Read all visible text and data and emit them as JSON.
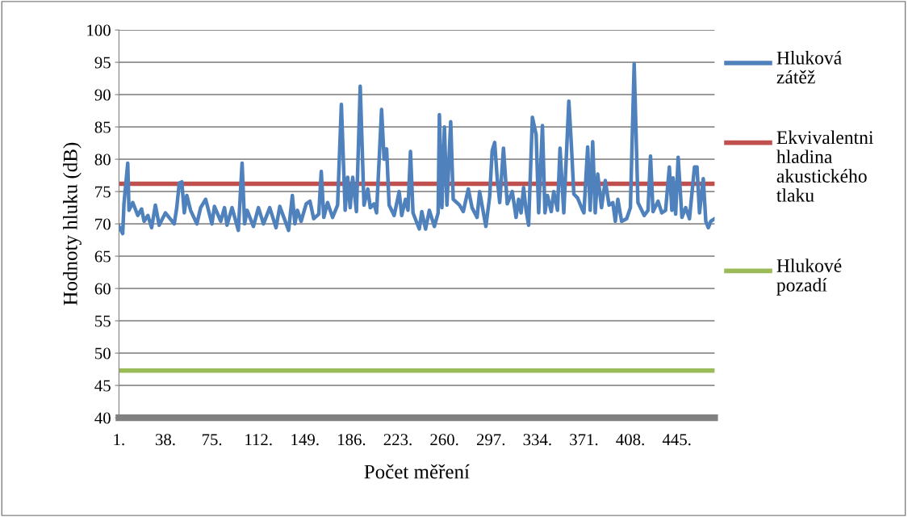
{
  "chart_data": {
    "type": "line",
    "xlabel": "Počet měření",
    "ylabel": "Hodnoty hluku (dB)",
    "xlim": [
      1,
      475
    ],
    "ylim": [
      40,
      100
    ],
    "xticks": [
      {
        "value": 1,
        "label": "1."
      },
      {
        "value": 38,
        "label": "38."
      },
      {
        "value": 75,
        "label": "75."
      },
      {
        "value": 112,
        "label": "112."
      },
      {
        "value": 149,
        "label": "149."
      },
      {
        "value": 186,
        "label": "186."
      },
      {
        "value": 223,
        "label": "223."
      },
      {
        "value": 260,
        "label": "260."
      },
      {
        "value": 297,
        "label": "297."
      },
      {
        "value": 334,
        "label": "334."
      },
      {
        "value": 371,
        "label": "371."
      },
      {
        "value": 408,
        "label": "408."
      },
      {
        "value": 445,
        "label": "445."
      }
    ],
    "yticks": [
      40,
      45,
      50,
      55,
      60,
      65,
      70,
      75,
      80,
      85,
      90,
      95,
      100
    ],
    "grid": "y",
    "legend": "right",
    "marker": "none",
    "line_style": "solid",
    "series": [
      {
        "name": "Hluková zátěž",
        "color": "#4f81bd",
        "x": [
          1,
          4,
          5,
          8,
          9,
          12,
          16,
          19,
          21,
          24,
          27,
          30,
          33,
          38,
          45,
          47,
          49,
          51,
          53,
          55,
          58,
          63,
          66,
          70,
          75,
          77,
          82,
          85,
          87,
          91,
          96,
          99,
          101,
          103,
          108,
          112,
          116,
          121,
          126,
          129,
          136,
          139,
          141,
          143,
          146,
          150,
          153,
          156,
          160,
          162,
          164,
          167,
          171,
          175,
          178,
          181,
          183,
          185,
          187,
          190,
          193,
          196,
          199,
          201,
          204,
          206,
          210,
          212,
          214,
          216,
          220,
          224,
          226,
          229,
          231,
          233,
          235,
          240,
          242,
          245,
          248,
          252,
          255,
          256,
          258,
          260,
          262,
          265,
          267,
          272,
          275,
          279,
          282,
          286,
          288,
          293,
          296,
          298,
          300,
          302,
          304,
          307,
          310,
          314,
          317,
          319,
          321,
          323,
          325,
          327,
          330,
          333,
          335,
          338,
          340,
          342,
          345,
          347,
          350,
          352,
          355,
          359,
          361,
          363,
          366,
          370,
          371,
          374,
          376,
          378,
          380,
          382,
          385,
          388,
          391,
          394,
          396,
          398,
          401,
          405,
          408,
          411,
          414,
          419,
          422,
          424,
          426,
          430,
          433,
          436,
          439,
          441,
          442,
          444,
          446,
          449,
          452,
          455,
          459,
          461,
          463,
          466,
          468,
          470,
          472,
          475
        ],
        "values": [
          69.6,
          68.5,
          73.1,
          79.4,
          72.1,
          73.3,
          71.3,
          72.3,
          70.4,
          71.3,
          69.4,
          72.9,
          69.8,
          71.7,
          70,
          72.5,
          76.3,
          76.5,
          71.7,
          74.4,
          72.1,
          70,
          72.5,
          73.8,
          70,
          72.7,
          70.4,
          72.5,
          69.8,
          72.5,
          69,
          79.4,
          70,
          72.1,
          69.6,
          72.5,
          70,
          72.5,
          69.4,
          72.7,
          69,
          74.4,
          70,
          72.1,
          70.4,
          73.1,
          73.5,
          70.8,
          71.5,
          78.1,
          71,
          73.3,
          71,
          72.9,
          88.5,
          72.1,
          77.2,
          72.5,
          77.2,
          71.9,
          91.3,
          72.9,
          75.4,
          72.5,
          73.1,
          71.7,
          87.7,
          80,
          81.6,
          72.9,
          71.3,
          75,
          71.3,
          73.8,
          72.1,
          81.2,
          71.7,
          69.2,
          71.9,
          69.2,
          72.1,
          69.6,
          71.7,
          86.9,
          72.5,
          85,
          72.9,
          85.8,
          73.8,
          72.9,
          71.9,
          75.4,
          72.5,
          71,
          75,
          69.6,
          74.2,
          81.3,
          82.6,
          77.1,
          73.3,
          81.7,
          73.1,
          75,
          71,
          73.8,
          71.7,
          75.6,
          72.1,
          69.8,
          86.5,
          83.8,
          71.7,
          85.2,
          71.7,
          74.4,
          71.9,
          75,
          72.1,
          81.7,
          71.7,
          89,
          82.3,
          74.6,
          74,
          72.1,
          71.7,
          81.9,
          72.1,
          82.7,
          71.7,
          77.7,
          72.5,
          76.7,
          72.9,
          73.3,
          70.4,
          73.8,
          70.4,
          70.8,
          72.5,
          94.8,
          73.3,
          71.3,
          72.1,
          80.5,
          71.9,
          73.5,
          71.7,
          72.1,
          78.8,
          72.1,
          77.1,
          71.5,
          80.3,
          71,
          72.5,
          70.8,
          78.8,
          78.8,
          71.7,
          77,
          70.4,
          69.4,
          70.4,
          70.8
        ]
      }
    ],
    "ref_lines": [
      {
        "axis": "y",
        "value": 76.2,
        "label": "Ekvivalentni hladina akustického tlaku",
        "color": "#c0504d",
        "line_style": "solid"
      },
      {
        "axis": "y",
        "value": 47.3,
        "label": "Hlukové pozadí",
        "color": "#9bbb59",
        "line_style": "solid"
      }
    ]
  }
}
